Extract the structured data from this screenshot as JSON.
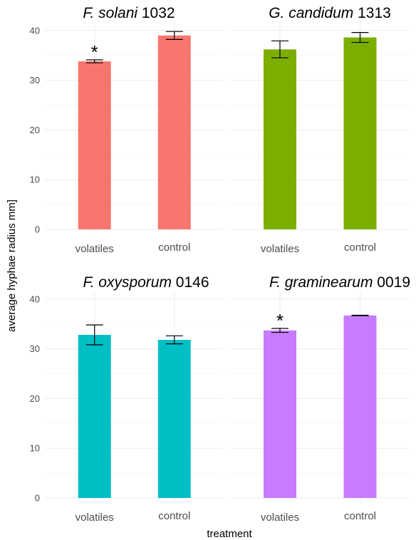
{
  "chart_data": {
    "type": "bar",
    "facet_layout": "2x2",
    "xlabel": "treatment",
    "ylabel": "average hyphae radius  mm]",
    "ylim": [
      0,
      40
    ],
    "yticks": [
      0,
      10,
      20,
      30,
      40
    ],
    "grid": true,
    "legend": "none",
    "panels": [
      {
        "title_italic": "F. solani",
        "title_plain": "1032",
        "color": "#F8766D",
        "categories": [
          "volatiles",
          "control"
        ],
        "values": [
          33.8,
          39.0
        ],
        "error": [
          0.3,
          0.8
        ],
        "significance": [
          "*",
          ""
        ]
      },
      {
        "title_italic": "G. candidum",
        "title_plain": "1313",
        "color": "#7CAE00",
        "categories": [
          "volatiles",
          "control"
        ],
        "values": [
          36.2,
          38.6
        ],
        "error": [
          1.7,
          1.0
        ],
        "significance": [
          "",
          ""
        ]
      },
      {
        "title_italic": "F. oxysporum",
        "title_plain": "0146",
        "color": "#00BFC4",
        "categories": [
          "volatiles",
          "control"
        ],
        "values": [
          32.8,
          31.8
        ],
        "error": [
          2.0,
          0.8
        ],
        "significance": [
          "",
          ""
        ]
      },
      {
        "title_italic": "F. graminearum",
        "title_plain": "0019",
        "color": "#C77CFF",
        "categories": [
          "volatiles",
          "control"
        ],
        "values": [
          33.7,
          36.7
        ],
        "error": [
          0.4,
          0.05
        ],
        "significance": [
          "*",
          ""
        ]
      }
    ]
  }
}
